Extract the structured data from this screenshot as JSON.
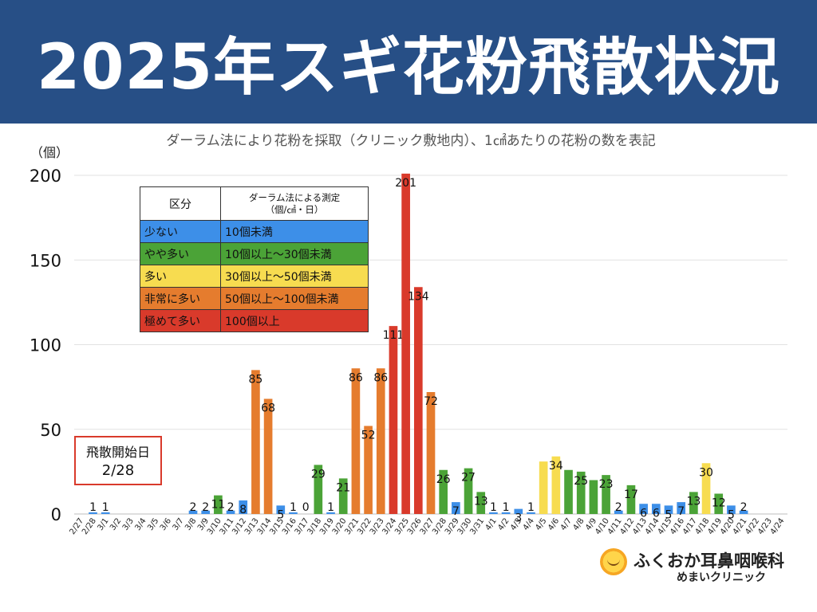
{
  "header": {
    "title": "2025年スギ花粉飛散状況"
  },
  "subtitle": "ダーラム法により花粉を採取（クリニック敷地内）、1㎠あたりの花粉の数を表記",
  "unit_label": "（個）",
  "legend": {
    "header": [
      "区分",
      "ダーラム法による測定",
      "（個/㎠・日）"
    ],
    "rows": [
      {
        "label": "少ない",
        "range": "10個未満",
        "color": "#3d8fe8"
      },
      {
        "label": "やや多い",
        "range": "10個以上〜30個未満",
        "color": "#4ba337"
      },
      {
        "label": "多い",
        "range": "30個以上〜50個未満",
        "color": "#f7dc50"
      },
      {
        "label": "非常に多い",
        "range": "50個以上〜100個未満",
        "color": "#e57c2e"
      },
      {
        "label": "極めて多い",
        "range": "100個以上",
        "color": "#d93a2b"
      }
    ]
  },
  "start_box": {
    "line1": "飛散開始日",
    "line2": "2/28"
  },
  "logo": {
    "name": "ふくおか耳鼻咽喉科",
    "sub": "めまいクリニック"
  },
  "chart_data": {
    "type": "bar",
    "ylim": [
      0,
      200
    ],
    "yticks": [
      0,
      50,
      100,
      150,
      200
    ],
    "grid": true,
    "legend_position": "top-left",
    "categories": [
      "2/27",
      "2/28",
      "3/1",
      "3/2",
      "3/3",
      "3/4",
      "3/5",
      "3/6",
      "3/7",
      "3/8",
      "3/9",
      "3/10",
      "3/11",
      "3/12",
      "3/13",
      "3/14",
      "3/15",
      "3/16",
      "3/17",
      "3/18",
      "3/19",
      "3/20",
      "3/21",
      "3/22",
      "3/23",
      "3/24",
      "3/25",
      "3/26",
      "3/27",
      "3/28",
      "3/29",
      "3/30",
      "3/31",
      "4/1",
      "4/2",
      "4/3",
      "4/4",
      "4/5",
      "4/6",
      "4/7",
      "4/8",
      "4/9",
      "4/10",
      "4/11",
      "4/12",
      "4/13",
      "4/14",
      "4/15",
      "4/16",
      "4/17",
      "4/18",
      "4/19",
      "4/20",
      "4/21",
      "4/22",
      "4/23",
      "4/24"
    ],
    "values": [
      null,
      1,
      1,
      null,
      null,
      null,
      null,
      null,
      null,
      2,
      2,
      11,
      2,
      8,
      85,
      68,
      5,
      1,
      0,
      29,
      1,
      21,
      86,
      52,
      86,
      111,
      201,
      134,
      72,
      26,
      7,
      27,
      13,
      1,
      1,
      3,
      1,
      31,
      34,
      26,
      25,
      20,
      23,
      2,
      17,
      6,
      6,
      5,
      7,
      13,
      30,
      12,
      5,
      2,
      null,
      null,
      null
    ],
    "data_labels": [
      "",
      "1",
      "1",
      "",
      "",
      "",
      "",
      "",
      "",
      "2",
      "2",
      "11",
      "2",
      "8",
      "85",
      "68",
      "5",
      "1",
      "0",
      "29",
      "1",
      "21",
      "86",
      "52",
      "86",
      "111",
      "201",
      "134",
      "72",
      "26",
      "7",
      "27",
      "13",
      "1",
      "1",
      "3",
      "1",
      "",
      "34",
      "",
      "25",
      "",
      "23",
      "2",
      "17",
      "6",
      "6",
      "5",
      "7",
      "13",
      "30",
      "12",
      "5",
      "2",
      "",
      "",
      ""
    ],
    "thresholds": [
      10,
      30,
      50,
      100
    ],
    "level_colors": [
      "#3d8fe8",
      "#4ba337",
      "#f7dc50",
      "#e57c2e",
      "#d93a2b"
    ]
  }
}
